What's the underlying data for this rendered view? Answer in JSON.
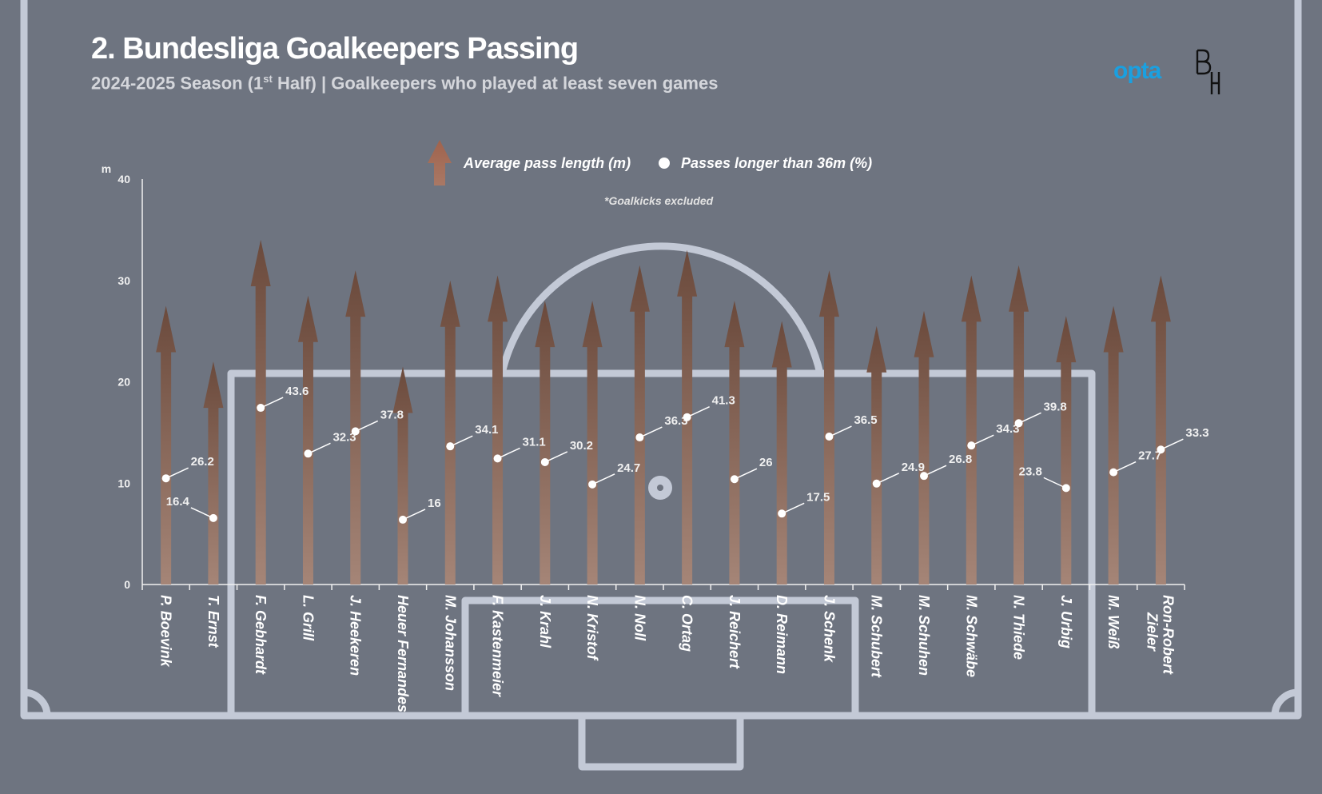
{
  "title": "2. Bundesliga Goalkeepers Passing",
  "subtitle_prefix": "2024-2025 Season (1",
  "subtitle_sup": "st",
  "subtitle_suffix": " Half) | Goalkeepers who played at least seven games",
  "brand": {
    "opta": "opta",
    "opta_color": "#1aa0e0",
    "bh_logo_icon": "bh-monogram-logo"
  },
  "colors": {
    "background": "#6e7480",
    "pitch_lines": "#c3c9d6",
    "arrow_top": "#6b4a3c",
    "arrow_bottom": "#a58577",
    "dot": "#ffffff"
  },
  "chart_data": {
    "type": "bar",
    "ylabel": "m",
    "ylim": [
      0,
      40
    ],
    "yticks": [
      0,
      10,
      20,
      30,
      40
    ],
    "legend": {
      "bar_label": "Average pass length (m)",
      "dot_label": "Passes longer than 36m (%)",
      "note": "*Goalkicks excluded",
      "placement": "top-center"
    },
    "categories": [
      "P. Boevink",
      "T. Ernst",
      "F. Gebhardt",
      "L. Grill",
      "J. Heekeren",
      "Heuer Fernandes",
      "M. Johansson",
      "F. Kastenmeier",
      "J. Krahl",
      "N. Kristof",
      "N. Noll",
      "C. Ortag",
      "J. Reichert",
      "D. Reimann",
      "J. Schenk",
      "M. Schubert",
      "M. Schuhen",
      "M. Schwäbe",
      "N. Thiede",
      "J. Urbig",
      "M. Weiß",
      "Ron-Robert Zieler"
    ],
    "series": [
      {
        "name": "Average pass length (m)",
        "values": [
          27.5,
          22.0,
          34.0,
          28.5,
          31.0,
          21.5,
          30.0,
          30.5,
          28.0,
          28.0,
          31.5,
          33.0,
          28.0,
          26.0,
          31.0,
          25.5,
          27.0,
          30.5,
          31.5,
          26.5,
          27.5,
          30.5
        ]
      },
      {
        "name": "Passes longer than 36m (%)",
        "values": [
          26.2,
          16.4,
          43.6,
          32.3,
          37.8,
          16,
          34.1,
          31.1,
          30.2,
          24.7,
          36.3,
          41.3,
          26,
          17.5,
          36.5,
          24.9,
          26.8,
          34.3,
          39.8,
          23.8,
          27.7,
          33.3
        ],
        "labels": [
          "26.2",
          "16.4",
          "43.6",
          "32.3",
          "37.8",
          "16",
          "34.1",
          "31.1",
          "30.2",
          "24.7",
          "36.3",
          "41.3",
          "26",
          "17.5",
          "36.5",
          "24.9",
          "26.8",
          "34.3",
          "39.8",
          "23.8",
          "27.7",
          "33.3"
        ]
      }
    ]
  }
}
